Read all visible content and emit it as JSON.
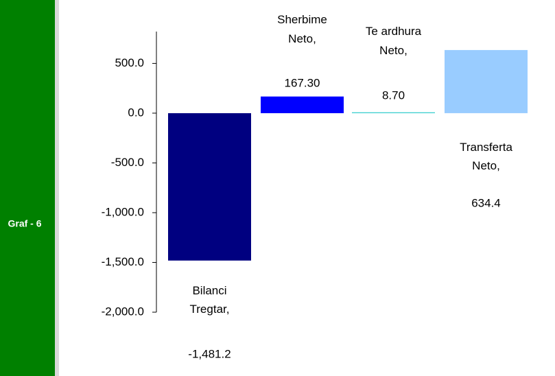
{
  "chart_data": {
    "type": "bar",
    "title": "Graf - 6",
    "categories": [
      "Bilanci Tregtar,",
      "Sherbime Neto,",
      "Te ardhura Neto,",
      "Transferta Neto,"
    ],
    "values": [
      -1481.2,
      167.3,
      8.7,
      634.4
    ],
    "value_labels": [
      "-1,481.2",
      "167.30",
      "8.70",
      "634.4"
    ],
    "colors": [
      "#000080",
      "#0000ff",
      "#33cccc",
      "#99ccff"
    ],
    "ylim": [
      -2000,
      820
    ],
    "yticks": [
      {
        "value": 500,
        "label": "500.0"
      },
      {
        "value": 0,
        "label": "0.0"
      },
      {
        "value": -500,
        "label": "-500.0"
      },
      {
        "value": -1000,
        "label": "-1,000.0"
      },
      {
        "value": -1500,
        "label": "-1,500.0"
      },
      {
        "value": -2000,
        "label": "-2,000.0"
      }
    ],
    "grid": false
  }
}
